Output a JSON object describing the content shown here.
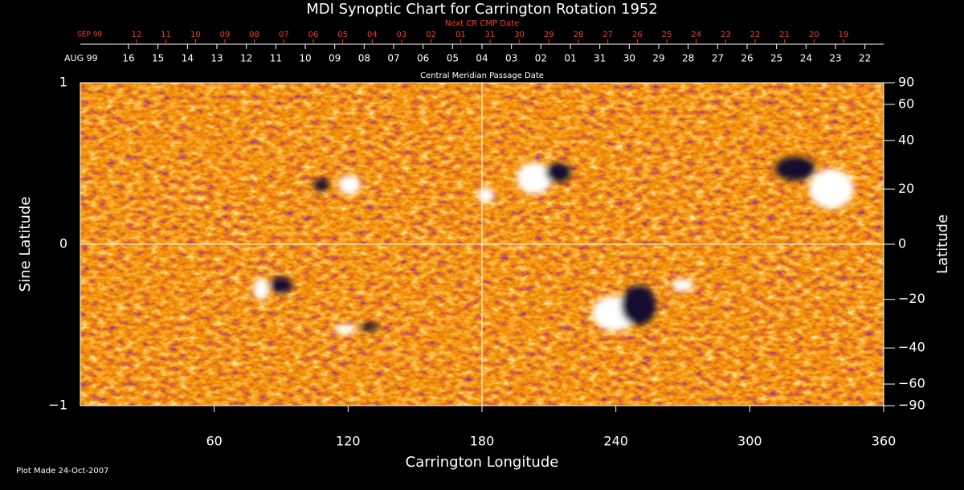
{
  "chart_data": {
    "type": "synoptic-map",
    "title": "MDI Synoptic Chart for Carrington Rotation 1952",
    "x_label": "Carrington Longitude",
    "y_label": "Sine Latitude",
    "y2_label": "Latitude",
    "y2_scale": "sine",
    "footnote": "Plot Made 24-Oct-2007",
    "xlim": [
      0,
      360
    ],
    "xticks": [
      60,
      120,
      180,
      240,
      300,
      360
    ],
    "ylim": [
      -1,
      1
    ],
    "yticks": [
      {
        "value": -1,
        "label": "−1"
      },
      0,
      1
    ],
    "y2lim": [
      -90,
      90
    ],
    "y2ticks": [
      {
        "value": -90,
        "label": "−90"
      },
      {
        "value": -60,
        "label": "−60"
      },
      {
        "value": -40,
        "label": "−40"
      },
      {
        "value": -20,
        "label": "−20"
      },
      0,
      20,
      40,
      60,
      90
    ],
    "date_axes": [
      {
        "label": "Central Meridian Passage Date",
        "start_label": "AUG 99",
        "color": "#ffffff",
        "ticks": [
          {
            "value": 21.6,
            "label": "16"
          },
          {
            "value": 34.8,
            "label": "15"
          },
          {
            "value": 48,
            "label": "14"
          },
          {
            "value": 61.2,
            "label": "13"
          },
          {
            "value": 74.4,
            "label": "12"
          },
          {
            "value": 87.6,
            "label": "11"
          },
          {
            "value": 100.8,
            "label": "10"
          },
          {
            "value": 114,
            "label": "09"
          },
          {
            "value": 127.2,
            "label": "08"
          },
          {
            "value": 140.4,
            "label": "07"
          },
          {
            "value": 153.6,
            "label": "06"
          },
          {
            "value": 166.8,
            "label": "05"
          },
          {
            "value": 180,
            "label": "04"
          },
          {
            "value": 193.2,
            "label": "03"
          },
          {
            "value": 206.4,
            "label": "02"
          },
          {
            "value": 219.6,
            "label": "01"
          },
          {
            "value": 232.8,
            "label": "31"
          },
          {
            "value": 246,
            "label": "30"
          },
          {
            "value": 259.2,
            "label": "29"
          },
          {
            "value": 272.4,
            "label": "28"
          },
          {
            "value": 285.6,
            "label": "27"
          },
          {
            "value": 298.8,
            "label": "26"
          },
          {
            "value": 312,
            "label": "25"
          },
          {
            "value": 325.2,
            "label": "24"
          },
          {
            "value": 338.4,
            "label": "23"
          },
          {
            "value": 351.6,
            "label": "22"
          }
        ]
      },
      {
        "label": "Next CR CMP Date",
        "start_label": "SEP 99",
        "color": "#ff3a1a",
        "ticks": [
          {
            "value": 25.2,
            "label": "12"
          },
          {
            "value": 38.4,
            "label": "11"
          },
          {
            "value": 51.6,
            "label": "10"
          },
          {
            "value": 64.8,
            "label": "09"
          },
          {
            "value": 78,
            "label": "08"
          },
          {
            "value": 91.2,
            "label": "07"
          },
          {
            "value": 104.4,
            "label": "06"
          },
          {
            "value": 117.6,
            "label": "05"
          },
          {
            "value": 130.8,
            "label": "04"
          },
          {
            "value": 144,
            "label": "03"
          },
          {
            "value": 157.2,
            "label": "02"
          },
          {
            "value": 170.4,
            "label": "01"
          },
          {
            "value": 183.6,
            "label": "31"
          },
          {
            "value": 196.8,
            "label": "30"
          },
          {
            "value": 210,
            "label": "29"
          },
          {
            "value": 223.2,
            "label": "28"
          },
          {
            "value": 236.4,
            "label": "27"
          },
          {
            "value": 249.6,
            "label": "26"
          },
          {
            "value": 262.8,
            "label": "25"
          },
          {
            "value": 276,
            "label": "24"
          },
          {
            "value": 289.2,
            "label": "23"
          },
          {
            "value": 302.4,
            "label": "22"
          },
          {
            "value": 315.6,
            "label": "21"
          },
          {
            "value": 328.8,
            "label": "20"
          },
          {
            "value": 342,
            "label": "19"
          }
        ]
      }
    ]
  }
}
